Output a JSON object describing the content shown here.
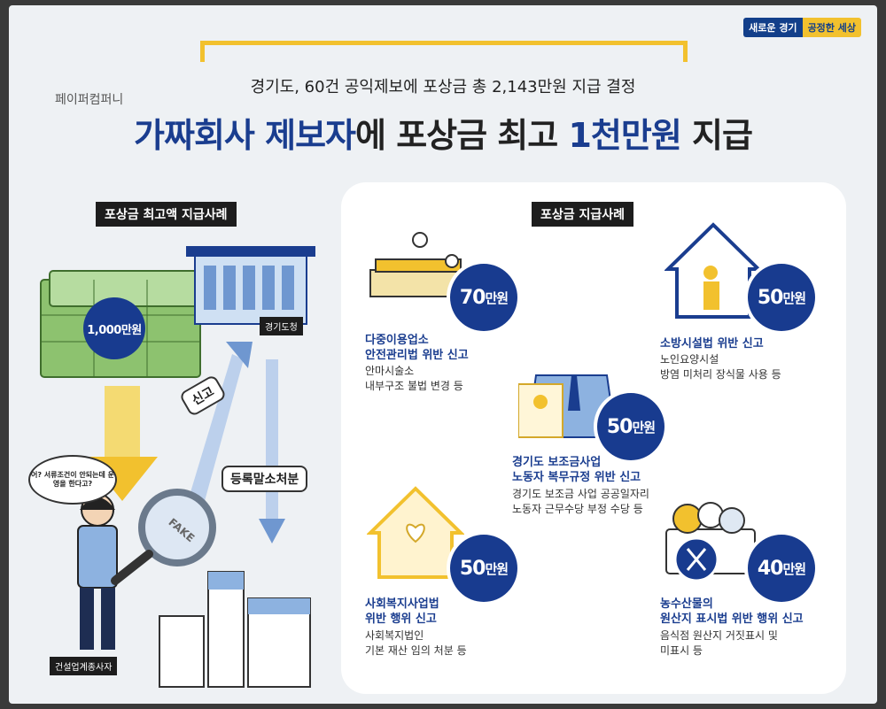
{
  "brand": {
    "left": "새로운 경기",
    "right": "공정한 세상"
  },
  "header": {
    "subtitle": "경기도, 60건 공익제보에 포상금 총 2,143만원 지급 결정",
    "company": "페이퍼컴퍼니",
    "title_part1": "가짜회사 제보자",
    "title_part2": "에 포상금 최고 ",
    "title_part3": "1천만원",
    "title_part4": " 지급"
  },
  "left_section": {
    "tag": "포상금 최고액 지급사례",
    "amount": "1,000만원",
    "office_sign": "경기도청",
    "report_label": "신고",
    "cancel_label": "등록말소처분",
    "speech": "어? 서류조건이 안되는데 운영을 한다고?",
    "fake_text": "FAKE",
    "person_sign": "건설업계종사자"
  },
  "right_section": {
    "tag": "포상금 지급사례",
    "cases": [
      {
        "amount": "70",
        "unit": "만원",
        "title": [
          "다중이용업소",
          "안전관리법 위반 신고"
        ],
        "desc": [
          "안마시술소",
          "내부구조 불법 변경 등"
        ]
      },
      {
        "amount": "50",
        "unit": "만원",
        "title": [
          "소방시설법 위반 신고"
        ],
        "desc": [
          "노인요양시설",
          "방염 미처리 장식물 사용 등"
        ]
      },
      {
        "amount": "50",
        "unit": "만원",
        "title": [
          "경기도 보조금사업",
          "노동자 복무규정 위반 신고"
        ],
        "desc": [
          "경기도 보조금 사업 공공일자리",
          "노동자 근무수당 부정 수당 등"
        ]
      },
      {
        "amount": "50",
        "unit": "만원",
        "title": [
          "사회복지사업법",
          "위반 행위 신고"
        ],
        "desc": [
          "사회복지법인",
          "기본 재산 임의 처분 등"
        ]
      },
      {
        "amount": "40",
        "unit": "만원",
        "title": [
          "농수산물의",
          "원산지 표시법 위반 행위 신고"
        ],
        "desc": [
          "음식점 원산지 거짓표시 및",
          "미표시 등"
        ]
      }
    ]
  },
  "colors": {
    "navy": "#183b8f",
    "yellow": "#f2c12e",
    "money": "#6aa84f"
  }
}
